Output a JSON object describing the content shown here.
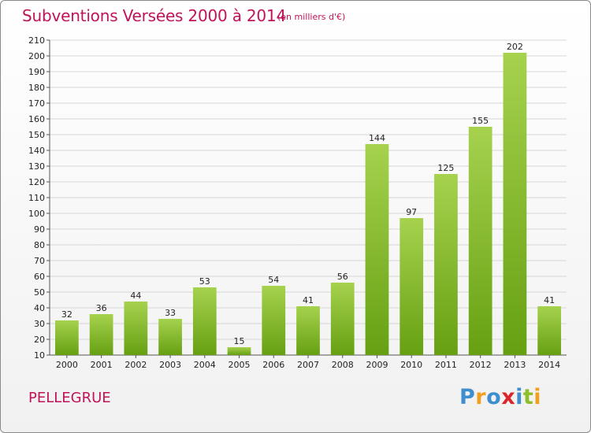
{
  "header": {
    "title": "Subventions Versées 2000 à 2014",
    "unit_note": "(en milliers d'€)"
  },
  "footer": {
    "commune": "PELLEGRUE",
    "brand_letters": [
      "P",
      "r",
      "o",
      "x",
      "i",
      "t",
      "i"
    ]
  },
  "colors": {
    "title": "#c0135a",
    "bar_top": "#a6d24e",
    "bar_bottom": "#66a012",
    "grid": "#d6d6d6"
  },
  "chart_data": {
    "type": "bar",
    "categories": [
      "2000",
      "2001",
      "2002",
      "2003",
      "2004",
      "2005",
      "2006",
      "2007",
      "2008",
      "2009",
      "2010",
      "2011",
      "2012",
      "2013",
      "2014"
    ],
    "values": [
      32,
      36,
      44,
      33,
      53,
      15,
      54,
      41,
      56,
      144,
      97,
      125,
      155,
      202,
      41
    ],
    "ylim": [
      10,
      210
    ],
    "yticks": [
      10,
      20,
      30,
      40,
      50,
      60,
      70,
      80,
      90,
      100,
      110,
      120,
      130,
      140,
      150,
      160,
      170,
      180,
      190,
      200,
      210
    ],
    "grid": true,
    "legend": "none"
  }
}
